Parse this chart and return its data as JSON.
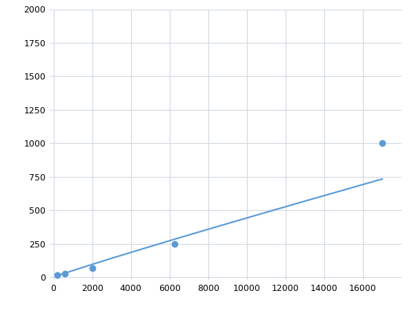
{
  "x": [
    200,
    600,
    2000,
    6250,
    17000
  ],
  "y": [
    15,
    25,
    70,
    250,
    1000
  ],
  "line_color": "#5b9bd5",
  "marker_color": "#5b9bd5",
  "marker_size": 6,
  "linewidth": 1.6,
  "xlim": [
    -200,
    18000
  ],
  "ylim": [
    -20,
    2000
  ],
  "xticks": [
    0,
    2000,
    4000,
    6000,
    8000,
    10000,
    12000,
    14000,
    16000
  ],
  "yticks": [
    0,
    250,
    500,
    750,
    1000,
    1250,
    1500,
    1750,
    2000
  ],
  "grid": true,
  "background_color": "#ffffff",
  "figure_bg": "#ffffff",
  "grid_color": "#d0d8e0"
}
